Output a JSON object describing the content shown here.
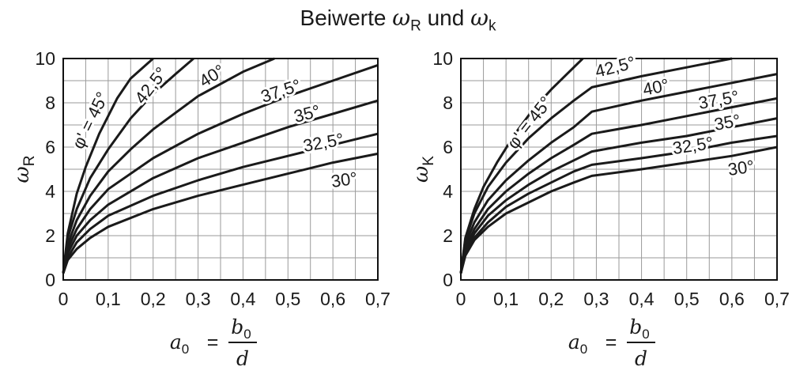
{
  "title": {
    "prefix": "Beiwerte ",
    "sym1": "ω",
    "sub1": "R",
    "mid": " und ",
    "sym2": "ω",
    "sub2": "k"
  },
  "chart_data": [
    {
      "type": "line",
      "ylabel": {
        "sym": "ω",
        "sub": "R"
      },
      "xlabel": {
        "lhs": "a",
        "lhs_sub": "0",
        "eq": "=",
        "num": "b",
        "num_sub": "0",
        "den": "d"
      },
      "xlim": [
        0,
        0.7
      ],
      "ylim": [
        0,
        10
      ],
      "x_ticks": [
        "0",
        "0,1",
        "0,2",
        "0,3",
        "0,4",
        "0,5",
        "0,6",
        "0,7"
      ],
      "y_ticks": [
        "0",
        "2",
        "4",
        "6",
        "8",
        "10"
      ],
      "grid": true,
      "series_labels": [
        "φ' = 45°",
        "42,5°",
        "40°",
        "37,5°",
        "35°",
        "32,5°",
        "30°"
      ],
      "series": [
        {
          "name": "45°",
          "x": [
            0,
            0.01,
            0.03,
            0.05,
            0.08,
            0.12,
            0.15,
            0.2
          ],
          "y": [
            0.3,
            2.1,
            3.9,
            5.1,
            6.6,
            8.2,
            9.1,
            10.0
          ]
        },
        {
          "name": "42,5°",
          "x": [
            0,
            0.01,
            0.03,
            0.06,
            0.1,
            0.15,
            0.2,
            0.25,
            0.29
          ],
          "y": [
            0.3,
            1.9,
            3.2,
            4.6,
            5.9,
            7.3,
            8.4,
            9.3,
            10.0
          ]
        },
        {
          "name": "40°",
          "x": [
            0,
            0.01,
            0.03,
            0.06,
            0.1,
            0.15,
            0.2,
            0.3,
            0.4,
            0.47
          ],
          "y": [
            0.3,
            1.6,
            2.7,
            3.8,
            4.9,
            5.9,
            6.8,
            8.3,
            9.4,
            10.0
          ]
        },
        {
          "name": "37,5°",
          "x": [
            0,
            0.01,
            0.03,
            0.06,
            0.1,
            0.2,
            0.3,
            0.4,
            0.5,
            0.6,
            0.7
          ],
          "y": [
            0.3,
            1.4,
            2.3,
            3.2,
            4.1,
            5.5,
            6.6,
            7.5,
            8.3,
            9.0,
            9.7
          ]
        },
        {
          "name": "35°",
          "x": [
            0,
            0.01,
            0.03,
            0.06,
            0.1,
            0.2,
            0.3,
            0.4,
            0.5,
            0.6,
            0.7
          ],
          "y": [
            0.3,
            1.2,
            2.0,
            2.7,
            3.4,
            4.6,
            5.5,
            6.2,
            6.9,
            7.5,
            8.1
          ]
        },
        {
          "name": "32,5°",
          "x": [
            0,
            0.01,
            0.03,
            0.06,
            0.1,
            0.2,
            0.3,
            0.4,
            0.5,
            0.6,
            0.7
          ],
          "y": [
            0.3,
            1.0,
            1.7,
            2.3,
            2.9,
            3.8,
            4.5,
            5.1,
            5.6,
            6.1,
            6.6
          ]
        },
        {
          "name": "30°",
          "x": [
            0,
            0.01,
            0.03,
            0.06,
            0.1,
            0.2,
            0.3,
            0.4,
            0.5,
            0.6,
            0.7
          ],
          "y": [
            0.3,
            0.9,
            1.4,
            1.9,
            2.4,
            3.2,
            3.8,
            4.3,
            4.8,
            5.3,
            5.7
          ]
        }
      ]
    },
    {
      "type": "line",
      "ylabel": {
        "sym": "ω",
        "sub": "K"
      },
      "xlabel": {
        "lhs": "a",
        "lhs_sub": "0",
        "eq": "=",
        "num": "b",
        "num_sub": "0",
        "den": "d"
      },
      "xlim": [
        0,
        0.7
      ],
      "ylim": [
        0,
        10
      ],
      "x_ticks": [
        "0",
        "0,1",
        "0,2",
        "0,3",
        "0,4",
        "0,5",
        "0,6",
        "0,7"
      ],
      "y_ticks": [
        "0",
        "2",
        "4",
        "6",
        "8",
        "10"
      ],
      "grid": true,
      "series_labels": [
        "φ' = 45°",
        "42,5°",
        "40°",
        "37,5°",
        "35°",
        "32,5°",
        "30°"
      ],
      "series": [
        {
          "name": "45°",
          "x": [
            0,
            0.01,
            0.03,
            0.05,
            0.08,
            0.12,
            0.16,
            0.2,
            0.24,
            0.27
          ],
          "y": [
            0.3,
            1.9,
            3.2,
            4.2,
            5.3,
            6.6,
            7.7,
            8.6,
            9.4,
            10.0
          ]
        },
        {
          "name": "42,5°",
          "x": [
            0,
            0.01,
            0.03,
            0.06,
            0.1,
            0.15,
            0.2,
            0.25,
            0.29,
            0.4,
            0.5,
            0.6
          ],
          "y": [
            0.3,
            1.8,
            3.0,
            4.2,
            5.3,
            6.4,
            7.3,
            8.1,
            8.7,
            9.2,
            9.6,
            10.0
          ]
        },
        {
          "name": "40°",
          "x": [
            0,
            0.01,
            0.03,
            0.06,
            0.1,
            0.15,
            0.2,
            0.25,
            0.29,
            0.4,
            0.5,
            0.6,
            0.7
          ],
          "y": [
            0.3,
            1.6,
            2.6,
            3.6,
            4.5,
            5.4,
            6.2,
            6.9,
            7.6,
            8.1,
            8.5,
            8.9,
            9.3
          ]
        },
        {
          "name": "37,5°",
          "x": [
            0,
            0.01,
            0.03,
            0.06,
            0.1,
            0.15,
            0.2,
            0.25,
            0.29,
            0.4,
            0.5,
            0.6,
            0.7
          ],
          "y": [
            0.3,
            1.4,
            2.3,
            3.2,
            4.0,
            4.8,
            5.5,
            6.1,
            6.6,
            7.0,
            7.4,
            7.8,
            8.2
          ]
        },
        {
          "name": "35°",
          "x": [
            0,
            0.01,
            0.03,
            0.06,
            0.1,
            0.15,
            0.2,
            0.25,
            0.29,
            0.4,
            0.5,
            0.6,
            0.7
          ],
          "y": [
            0.3,
            1.3,
            2.1,
            2.9,
            3.6,
            4.3,
            4.9,
            5.4,
            5.8,
            6.2,
            6.5,
            6.9,
            7.3
          ]
        },
        {
          "name": "32,5°",
          "x": [
            0,
            0.01,
            0.03,
            0.06,
            0.1,
            0.15,
            0.2,
            0.25,
            0.29,
            0.4,
            0.5,
            0.6,
            0.7
          ],
          "y": [
            0.3,
            1.2,
            1.9,
            2.6,
            3.3,
            3.9,
            4.4,
            4.9,
            5.2,
            5.5,
            5.8,
            6.2,
            6.5
          ]
        },
        {
          "name": "30°",
          "x": [
            0,
            0.01,
            0.03,
            0.06,
            0.1,
            0.15,
            0.2,
            0.25,
            0.29,
            0.4,
            0.5,
            0.6,
            0.7
          ],
          "y": [
            0.3,
            1.1,
            1.8,
            2.4,
            3.0,
            3.5,
            4.0,
            4.4,
            4.7,
            5.0,
            5.3,
            5.6,
            6.0
          ]
        }
      ]
    }
  ]
}
